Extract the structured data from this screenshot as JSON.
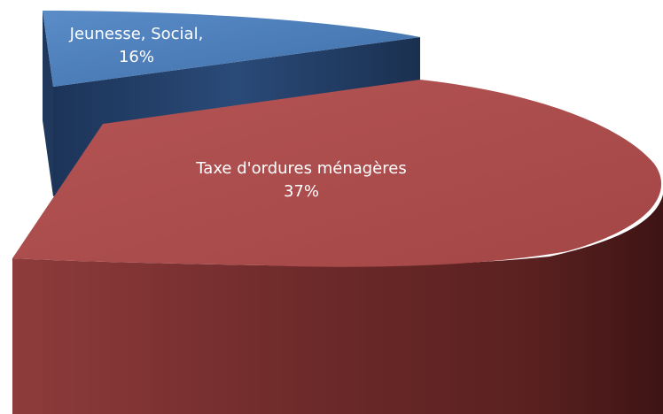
{
  "chart_data": {
    "type": "pie",
    "style": "3d-exploded",
    "legend": "none",
    "slices": [
      {
        "category": "Jeunesse, Social",
        "value": 16,
        "label_line1": "Jeunesse, Social,",
        "label_line2": "16%",
        "color_top": "#4f81bd",
        "color_side": "#233f66"
      },
      {
        "category": "Taxe d'ordures ménagères",
        "value": 37,
        "label_line1": "Taxe d'ordures ménagères",
        "label_line2": "37%",
        "color_top": "#a94c4c",
        "color_side": "#6a2626"
      }
    ]
  }
}
